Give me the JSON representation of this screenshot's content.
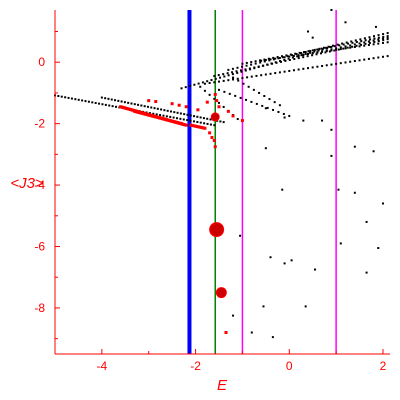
{
  "chart_data": {
    "type": "scatter",
    "xlabel": "E",
    "ylabel": "<J3>",
    "xlim": [
      -5,
      2.15
    ],
    "ylim": [
      -9.5,
      1.7
    ],
    "x_ticks": [
      -4,
      -2,
      0,
      2
    ],
    "y_ticks": [
      0,
      -2,
      -4,
      -6,
      -8
    ],
    "vlines": [
      {
        "x": -2.13,
        "color": "#0000ff",
        "width": 4
      },
      {
        "x": -1.58,
        "color": "#008000",
        "width": 1.5
      },
      {
        "x": -1.0,
        "color": "#ff00ff",
        "width": 1.5
      },
      {
        "x": 1.0,
        "color": "#ff00ff",
        "width": 1.5
      }
    ],
    "colors": {
      "axis": "#ff0000",
      "black_points": "#000000",
      "red_points": "#ff0000",
      "big_points": "#cc0000"
    },
    "series": [
      {
        "marker_color": "#000000",
        "lines": [
          {
            "x0": -5.0,
            "x1": -1.6,
            "y0": -1.08,
            "y1": -2.05,
            "n": 48
          },
          {
            "x0": -4.0,
            "x1": -1.4,
            "y0": -1.15,
            "y1": -1.95,
            "n": 38
          },
          {
            "x0": -2.3,
            "x1": 0.9,
            "y0": -0.85,
            "y1": 0.5,
            "n": 36
          },
          {
            "x0": -1.8,
            "x1": 2.1,
            "y0": -0.7,
            "y1": 0.2,
            "n": 40
          },
          {
            "x0": -1.6,
            "x1": 2.1,
            "y0": -0.45,
            "y1": 0.75,
            "n": 40
          },
          {
            "x0": -1.3,
            "x1": 2.1,
            "y0": -0.25,
            "y1": 0.95,
            "n": 36
          },
          {
            "x0": -1.0,
            "x1": 2.1,
            "y0": -0.05,
            "y1": 0.85,
            "n": 34
          },
          {
            "x0": -0.6,
            "x1": 2.1,
            "y0": 0.05,
            "y1": 0.65,
            "n": 28
          },
          {
            "x0": 0.2,
            "x1": 2.1,
            "y0": 0.2,
            "y1": 0.8,
            "n": 20
          },
          {
            "x0": -1.5,
            "x1": 0.0,
            "y0": -0.9,
            "y1": -1.75,
            "n": 14
          },
          {
            "x0": -1.9,
            "x1": -1.1,
            "y0": -0.8,
            "y1": -1.85,
            "n": 9
          },
          {
            "x0": -1.2,
            "x1": -0.2,
            "y0": -0.5,
            "y1": -1.4,
            "n": 10
          }
        ],
        "points": [
          [
            0.9,
            1.7
          ],
          [
            1.2,
            1.3
          ],
          [
            1.85,
            1.15
          ],
          [
            0.5,
            0.8
          ],
          [
            0.4,
            1.0
          ],
          [
            -0.5,
            -1.5
          ],
          [
            -0.1,
            -1.8
          ],
          [
            0.3,
            -1.9
          ],
          [
            0.7,
            -1.9
          ],
          [
            0.9,
            -2.2
          ],
          [
            -0.5,
            -2.8
          ],
          [
            0.9,
            -3.05
          ],
          [
            1.4,
            -2.75
          ],
          [
            1.8,
            -2.9
          ],
          [
            -0.15,
            -4.15
          ],
          [
            1.05,
            -4.15
          ],
          [
            1.4,
            -4.25
          ],
          [
            2.0,
            -4.6
          ],
          [
            1.65,
            -5.2
          ],
          [
            -1.05,
            -5.65
          ],
          [
            1.1,
            -5.9
          ],
          [
            1.9,
            -6.05
          ],
          [
            -0.4,
            -6.35
          ],
          [
            -0.1,
            -6.55
          ],
          [
            0.05,
            -6.45
          ],
          [
            0.55,
            -6.75
          ],
          [
            1.65,
            -6.85
          ],
          [
            -0.55,
            -7.95
          ],
          [
            0.35,
            -7.95
          ],
          [
            -1.2,
            -8.25
          ],
          [
            -0.8,
            -8.8
          ],
          [
            -0.35,
            -8.95
          ]
        ]
      },
      {
        "marker_color": "#ff0000",
        "lines": [
          {
            "x0": -3.6,
            "x1": -2.2,
            "y0": -1.45,
            "y1": -2.05,
            "n": 55
          },
          {
            "x0": -3.3,
            "x1": -2.3,
            "y0": -1.6,
            "y1": -2.0,
            "n": 35
          },
          {
            "x0": -2.1,
            "x1": -1.8,
            "y0": -2.05,
            "y1": -2.15,
            "n": 10
          }
        ],
        "points": [
          [
            -3.0,
            -1.25
          ],
          [
            -2.85,
            -1.28
          ],
          [
            -2.5,
            -1.35
          ],
          [
            -2.35,
            -1.4
          ],
          [
            -2.2,
            -1.45
          ],
          [
            -1.95,
            -1.55
          ],
          [
            -1.75,
            -1.3
          ],
          [
            -1.5,
            -1.45
          ],
          [
            -1.3,
            -1.6
          ],
          [
            -1.2,
            -1.75
          ],
          [
            -1.0,
            -1.9
          ],
          [
            -1.7,
            -2.3
          ],
          [
            -1.65,
            -2.45
          ],
          [
            -1.6,
            -2.55
          ],
          [
            -1.58,
            -2.75
          ],
          [
            -1.58,
            -1.05
          ],
          [
            -1.55,
            -1.25
          ],
          [
            -1.62,
            -1.85
          ],
          [
            -1.35,
            -8.8
          ]
        ]
      },
      {
        "marker_color": "#cc0000",
        "big_points": [
          {
            "x": -1.58,
            "y": -1.78,
            "r": 4
          },
          {
            "x": -1.55,
            "y": -5.45,
            "r": 7
          },
          {
            "x": -1.45,
            "y": -7.5,
            "r": 5
          }
        ]
      }
    ]
  }
}
